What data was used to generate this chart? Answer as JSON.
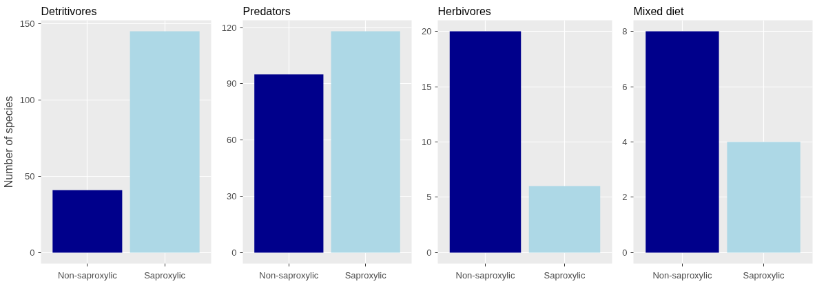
{
  "chart_data": [
    {
      "type": "bar",
      "title": "Detritivores",
      "ylabel": "Number of species",
      "categories": [
        "Non-saproxylic",
        "Saproxylic"
      ],
      "values": [
        41,
        145
      ],
      "colors": [
        "#00008b",
        "#add8e6"
      ],
      "ylim": [
        -7.25,
        152.25
      ],
      "yticks": [
        0,
        50,
        100,
        150
      ],
      "grid": true
    },
    {
      "type": "bar",
      "title": "Predators",
      "categories": [
        "Non-saproxylic",
        "Saproxylic"
      ],
      "values": [
        95,
        118
      ],
      "colors": [
        "#00008b",
        "#add8e6"
      ],
      "ylim": [
        -5.9,
        123.9
      ],
      "yticks": [
        0,
        30,
        60,
        90,
        120
      ],
      "grid": true
    },
    {
      "type": "bar",
      "title": "Herbivores",
      "categories": [
        "Non-saproxylic",
        "Saproxylic"
      ],
      "values": [
        20,
        6
      ],
      "colors": [
        "#00008b",
        "#add8e6"
      ],
      "ylim": [
        -1,
        21
      ],
      "yticks": [
        0,
        5,
        10,
        15,
        20
      ],
      "grid": true
    },
    {
      "type": "bar",
      "title": "Mixed diet",
      "categories": [
        "Non-saproxylic",
        "Saproxylic"
      ],
      "values": [
        8,
        4
      ],
      "colors": [
        "#00008b",
        "#add8e6"
      ],
      "ylim": [
        -0.4,
        8.4
      ],
      "yticks": [
        0,
        2,
        4,
        6,
        8
      ],
      "grid": true
    }
  ]
}
